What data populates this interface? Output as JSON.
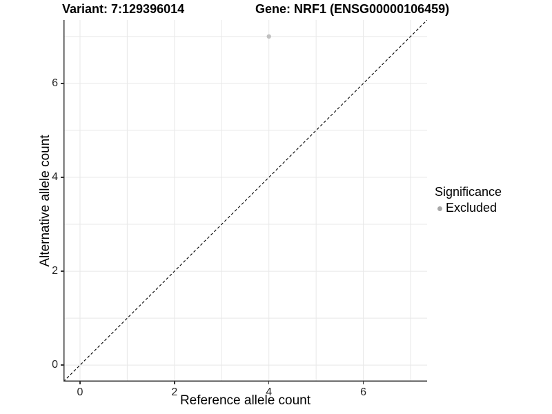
{
  "header": {
    "variant_title": "Variant: 7:129396014",
    "gene_title": "Gene: NRF1 (ENSG00000106459)"
  },
  "legend": {
    "title": "Significance",
    "items": [
      {
        "label": "Excluded",
        "color": "#a8a8a8"
      }
    ]
  },
  "colors": {
    "background": "#ffffff",
    "grid": "#e8e8e8",
    "axis_line": "#333333",
    "tick_mark": "#333333",
    "tick_label": "#262626",
    "text": "#000000",
    "point": "#c0c0c0",
    "reference_line": "#000000"
  },
  "chart_data": {
    "type": "scatter",
    "title": "Variant: 7:129396014   |   Gene: NRF1 (ENSG00000106459)",
    "xlabel": "Reference allele count",
    "ylabel": "Alternative allele count",
    "xlim": [
      -0.35,
      7.35
    ],
    "ylim": [
      -0.35,
      7.35
    ],
    "x_ticks": [
      0,
      2,
      4,
      6
    ],
    "y_ticks": [
      0,
      2,
      4,
      6
    ],
    "x_grid": [
      0,
      1,
      2,
      3,
      4,
      5,
      6,
      7
    ],
    "y_grid": [
      0,
      1,
      2,
      3,
      4,
      5,
      6,
      7
    ],
    "grid": "on",
    "legend_position": "right",
    "legend_title": "Significance",
    "series": [
      {
        "name": "Excluded",
        "color": "#c0c0c0",
        "points": [
          {
            "x": 4,
            "y": 7
          }
        ]
      }
    ],
    "reference_line": {
      "equation": "y = x",
      "style": "dashed",
      "color": "#000000"
    }
  }
}
